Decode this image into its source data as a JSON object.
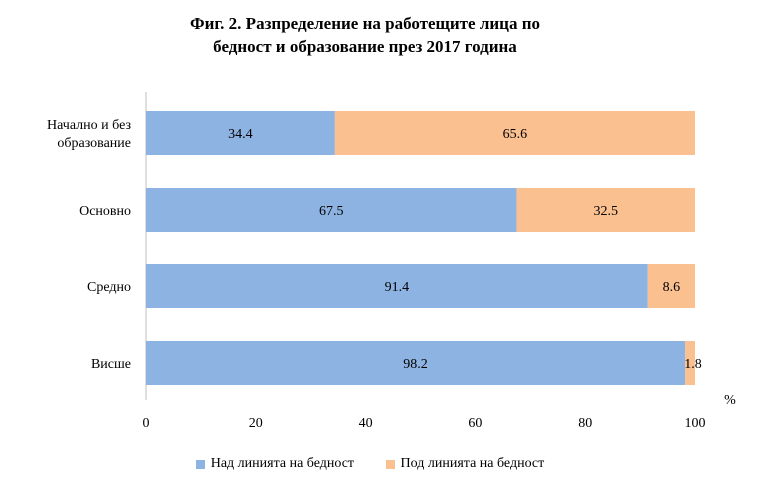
{
  "chart_data": {
    "type": "bar",
    "orientation": "horizontal",
    "stacked": true,
    "title_lines": [
      "Фиг. 2. Разпределение на работещите лица по",
      "бедност и образование през 2017 година"
    ],
    "categories": [
      "Начално и без образование",
      "Основно",
      "Средно",
      "Висше"
    ],
    "category_label_lines": [
      [
        "Начално и без",
        "образование"
      ],
      [
        "Основно"
      ],
      [
        "Средно"
      ],
      [
        "Висше"
      ]
    ],
    "series": [
      {
        "name": "Над линията на бедност",
        "color": "#8db3e2",
        "values": [
          34.4,
          67.5,
          91.4,
          98.2
        ]
      },
      {
        "name": "Под линията на бедност",
        "color": "#fac090",
        "values": [
          65.6,
          32.5,
          8.6,
          1.8
        ]
      }
    ],
    "xlim": [
      0,
      100
    ],
    "xticks": [
      0,
      20,
      40,
      60,
      80,
      100
    ],
    "xlabel": "%",
    "grid": false,
    "legend_position": "bottom"
  }
}
